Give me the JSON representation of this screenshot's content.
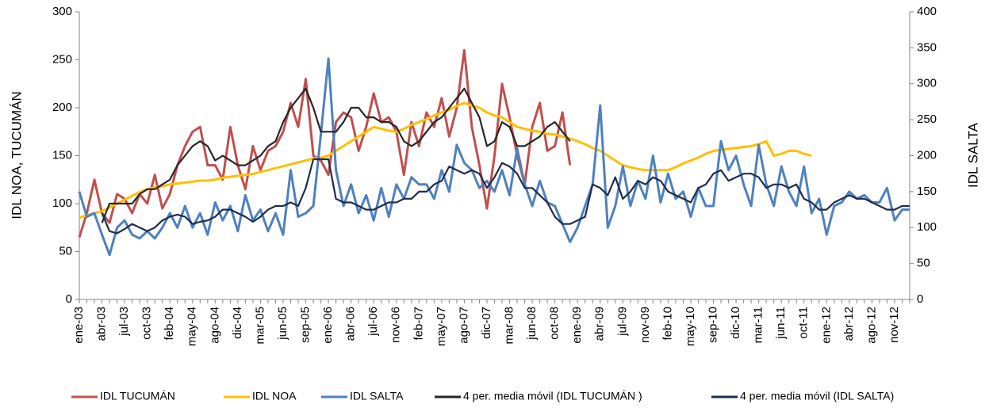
{
  "chart_data": {
    "type": "line",
    "categories": [
      "ene-03",
      null,
      null,
      "abr-03",
      null,
      null,
      "jul-03",
      null,
      null,
      "oct-03",
      null,
      null,
      "feb-04",
      null,
      null,
      "may-04",
      null,
      null,
      "ago-04",
      null,
      null,
      "dic-04",
      null,
      null,
      "mar-05",
      null,
      null,
      "jun-05",
      null,
      null,
      "sep-05",
      null,
      null,
      "ene-06",
      null,
      null,
      "abr-06",
      null,
      null,
      "jul-06",
      null,
      null,
      "nov-06",
      null,
      null,
      "feb-07",
      null,
      null,
      "may-07",
      null,
      null,
      "ago-07",
      null,
      null,
      "dic-07",
      null,
      null,
      "mar-08",
      null,
      null,
      "jun-08",
      null,
      null,
      "oct-08",
      null,
      null,
      "ene-09",
      null,
      null,
      "abr-09",
      null,
      null,
      "jul-09",
      null,
      null,
      "nov-09",
      null,
      null,
      "feb-10",
      null,
      null,
      "may-10",
      null,
      null,
      "sep-10",
      null,
      null,
      "dic-10",
      null,
      null,
      "mar-11",
      null,
      null,
      "jun-11",
      null,
      null,
      "oct-11",
      null,
      null,
      "ene-12",
      null,
      null,
      "abr-12",
      null,
      null,
      "ago-12",
      null,
      null,
      "nov-12",
      null,
      null
    ],
    "ylabel": "IDL NOA,  TUCUMÁN",
    "y2label": "IDL SALTA",
    "ylim": [
      0,
      300
    ],
    "yticks": [
      0,
      50,
      100,
      150,
      200,
      250,
      300
    ],
    "y2lim": [
      0,
      400
    ],
    "y2ticks": [
      0,
      50,
      100,
      150,
      200,
      250,
      300,
      350,
      400
    ],
    "series": [
      {
        "name": "IDL TUCUMÁN",
        "color": "#c0504d",
        "values": [
          65,
          90,
          125,
          90,
          80,
          110,
          105,
          90,
          110,
          100,
          130,
          95,
          110,
          140,
          160,
          175,
          180,
          140,
          140,
          125,
          180,
          140,
          115,
          160,
          135,
          155,
          160,
          175,
          205,
          180,
          230,
          150,
          145,
          130,
          185,
          195,
          190,
          155,
          180,
          215,
          185,
          190,
          175,
          130,
          185,
          160,
          195,
          180,
          210,
          170,
          200,
          260,
          180,
          140,
          95,
          150,
          225,
          190,
          150,
          120,
          180,
          205,
          155,
          160,
          195,
          140,
          null,
          null,
          null,
          null,
          null,
          null,
          null,
          null,
          null,
          null,
          null,
          null,
          null,
          null,
          null,
          null,
          null,
          null,
          null,
          null,
          null,
          null,
          null,
          null,
          null,
          null,
          null,
          null,
          null,
          null,
          null,
          null,
          null,
          null,
          null,
          null,
          null,
          null,
          null,
          null,
          null,
          null,
          null,
          null,
          null
        ]
      },
      {
        "name": "IDL NOA",
        "color": "#ffc000",
        "values": [
          85,
          88,
          90,
          92,
          96,
          100,
          104,
          108,
          112,
          115,
          117,
          118,
          120,
          121,
          122,
          123,
          124,
          124,
          125,
          127,
          128,
          129,
          130,
          131,
          133,
          135,
          137,
          139,
          141,
          143,
          145,
          147,
          148,
          150,
          155,
          160,
          165,
          170,
          175,
          180,
          178,
          176,
          175,
          178,
          182,
          185,
          188,
          192,
          195,
          198,
          202,
          205,
          202,
          200,
          195,
          192,
          190,
          185,
          180,
          178,
          176,
          175,
          173,
          172,
          170,
          168,
          165,
          162,
          158,
          155,
          150,
          145,
          140,
          138,
          136,
          135,
          135,
          135,
          135,
          138,
          142,
          145,
          148,
          152,
          155,
          156,
          157,
          158,
          159,
          160,
          162,
          165,
          150,
          152,
          155,
          155,
          152,
          150,
          null,
          null,
          null,
          null,
          null,
          null,
          null,
          null,
          null,
          null,
          null,
          null,
          null
        ]
      },
      {
        "name": "IDL SALTA",
        "color": "#4f81bd",
        "axis": "y2",
        "values": [
          150,
          115,
          120,
          90,
          62,
          100,
          110,
          90,
          85,
          95,
          85,
          100,
          120,
          100,
          130,
          100,
          120,
          90,
          135,
          110,
          130,
          95,
          145,
          110,
          125,
          95,
          120,
          90,
          180,
          115,
          120,
          130,
          230,
          335,
          180,
          130,
          160,
          120,
          145,
          110,
          155,
          115,
          160,
          140,
          170,
          160,
          160,
          140,
          180,
          150,
          215,
          190,
          180,
          155,
          165,
          150,
          180,
          145,
          210,
          160,
          130,
          165,
          135,
          130,
          105,
          80,
          100,
          130,
          160,
          270,
          100,
          130,
          185,
          130,
          165,
          140,
          200,
          135,
          175,
          140,
          150,
          115,
          155,
          130,
          130,
          220,
          180,
          200,
          160,
          130,
          215,
          160,
          130,
          185,
          150,
          130,
          185,
          120,
          140,
          90,
          130,
          135,
          150,
          140,
          145,
          135,
          135,
          155,
          110,
          125,
          125
        ]
      },
      {
        "name": "4 per. media móvil (IDL TUCUMÁN )",
        "color": "#262626",
        "values": [
          null,
          null,
          null,
          80,
          100,
          100,
          100,
          100,
          110,
          115,
          115,
          120,
          125,
          140,
          150,
          160,
          165,
          160,
          145,
          150,
          145,
          140,
          140,
          145,
          150,
          160,
          165,
          185,
          200,
          210,
          220,
          200,
          175,
          175,
          175,
          185,
          200,
          200,
          190,
          190,
          185,
          185,
          180,
          165,
          160,
          165,
          175,
          185,
          190,
          200,
          210,
          220,
          205,
          190,
          160,
          165,
          185,
          180,
          160,
          160,
          165,
          170,
          180,
          185,
          175,
          165,
          null,
          null,
          null,
          null,
          null,
          null,
          null,
          null,
          null,
          null,
          null,
          null,
          null,
          null,
          null,
          null,
          null,
          null,
          null,
          null,
          null,
          null,
          null,
          null,
          null,
          null,
          null,
          null,
          null,
          null,
          null,
          null,
          null,
          null,
          null,
          null,
          null,
          null,
          null,
          null,
          null,
          null,
          null,
          null,
          null
        ]
      },
      {
        "name": "4 per. media móvil (IDL SALTA)",
        "color": "#1f2d4d",
        "axis": "y2",
        "values": [
          null,
          null,
          null,
          120,
          95,
          92,
          98,
          105,
          100,
          95,
          100,
          110,
          115,
          118,
          115,
          105,
          108,
          110,
          115,
          125,
          125,
          120,
          115,
          108,
          115,
          125,
          130,
          130,
          135,
          130,
          155,
          195,
          195,
          195,
          140,
          135,
          135,
          130,
          125,
          125,
          130,
          135,
          135,
          140,
          140,
          150,
          150,
          160,
          165,
          185,
          180,
          175,
          180,
          175,
          155,
          170,
          190,
          185,
          175,
          155,
          155,
          145,
          135,
          115,
          105,
          105,
          110,
          115,
          160,
          155,
          145,
          170,
          140,
          150,
          165,
          160,
          170,
          165,
          150,
          145,
          140,
          135,
          155,
          160,
          175,
          180,
          165,
          170,
          175,
          175,
          170,
          155,
          160,
          160,
          155,
          160,
          140,
          135,
          125,
          125,
          135,
          140,
          145,
          140,
          140,
          135,
          130,
          125,
          125,
          130,
          130
        ]
      }
    ]
  }
}
